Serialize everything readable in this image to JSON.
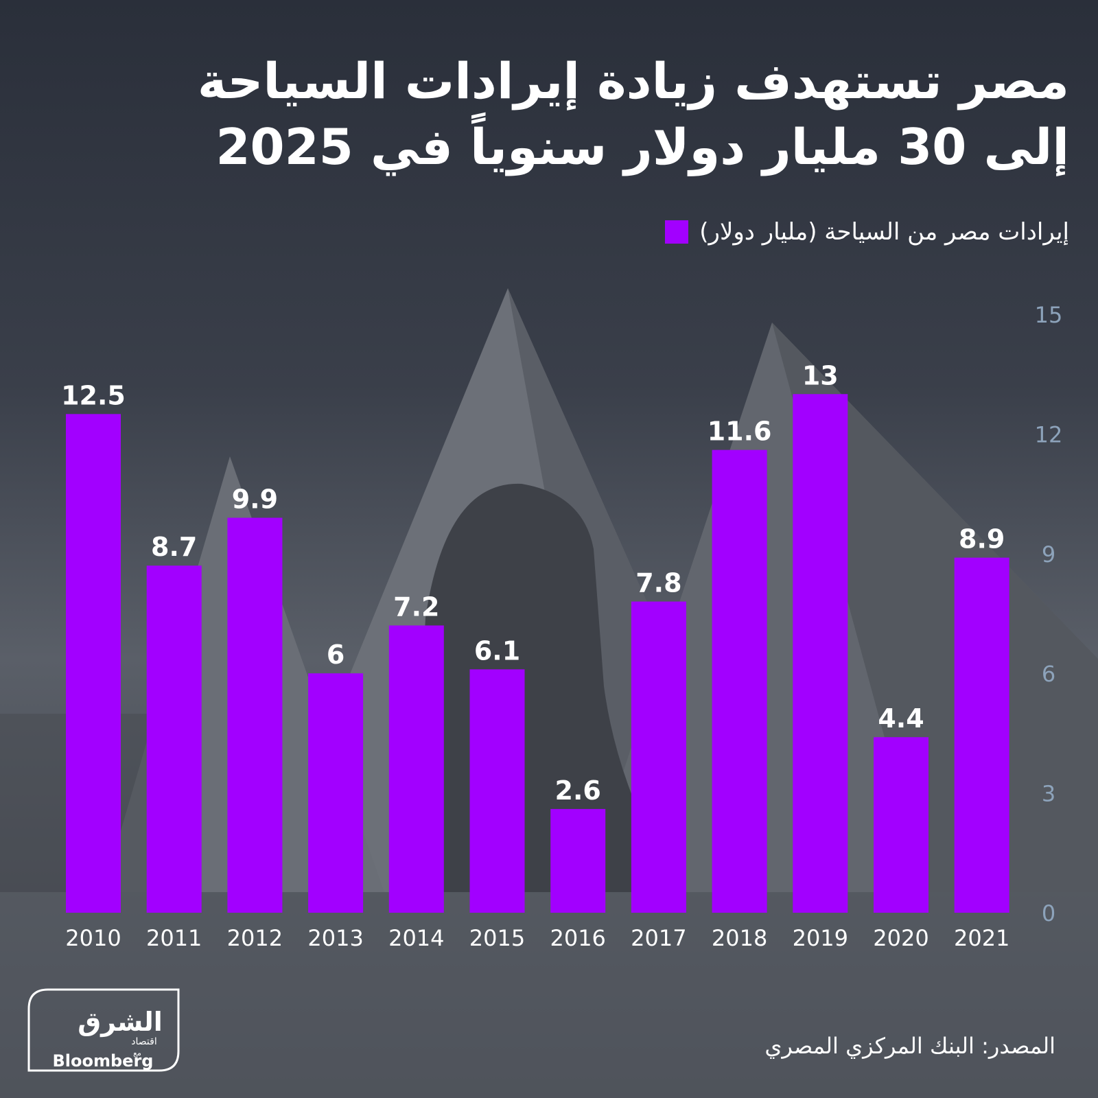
{
  "title_line1": "مصر تستهدف زيادة إيرادات السياحة",
  "title_line2": "إلى 30 مليار دولار سنوياً في 2025",
  "legend_label": "إيرادات مصر من السياحة (مليار دولار)",
  "source": "المصدر: البنك المركزي المصري",
  "logo": {
    "arabic": "الشرق",
    "sub": "اقتصاد",
    "with": "مع",
    "brand": "Bloomberg"
  },
  "colors": {
    "bar": "#a200ff",
    "axis_text": "#8da3bb",
    "label": "#ffffff"
  },
  "chart_data": {
    "type": "bar",
    "categories": [
      "2010",
      "2011",
      "2012",
      "2013",
      "2014",
      "2015",
      "2016",
      "2017",
      "2018",
      "2019",
      "2020",
      "2021"
    ],
    "values": [
      12.5,
      8.7,
      9.9,
      6,
      7.2,
      6.1,
      2.6,
      7.8,
      11.6,
      13,
      4.4,
      8.9
    ],
    "value_labels": [
      "12.5",
      "8.7",
      "9.9",
      "6",
      "7.2",
      "6.1",
      "2.6",
      "7.8",
      "11.6",
      "13",
      "4.4",
      "8.9"
    ],
    "yticks": [
      "0",
      "3",
      "6",
      "9",
      "12",
      "15"
    ],
    "ylim": [
      0,
      15
    ],
    "y_axis_side": "right",
    "grid": false
  }
}
